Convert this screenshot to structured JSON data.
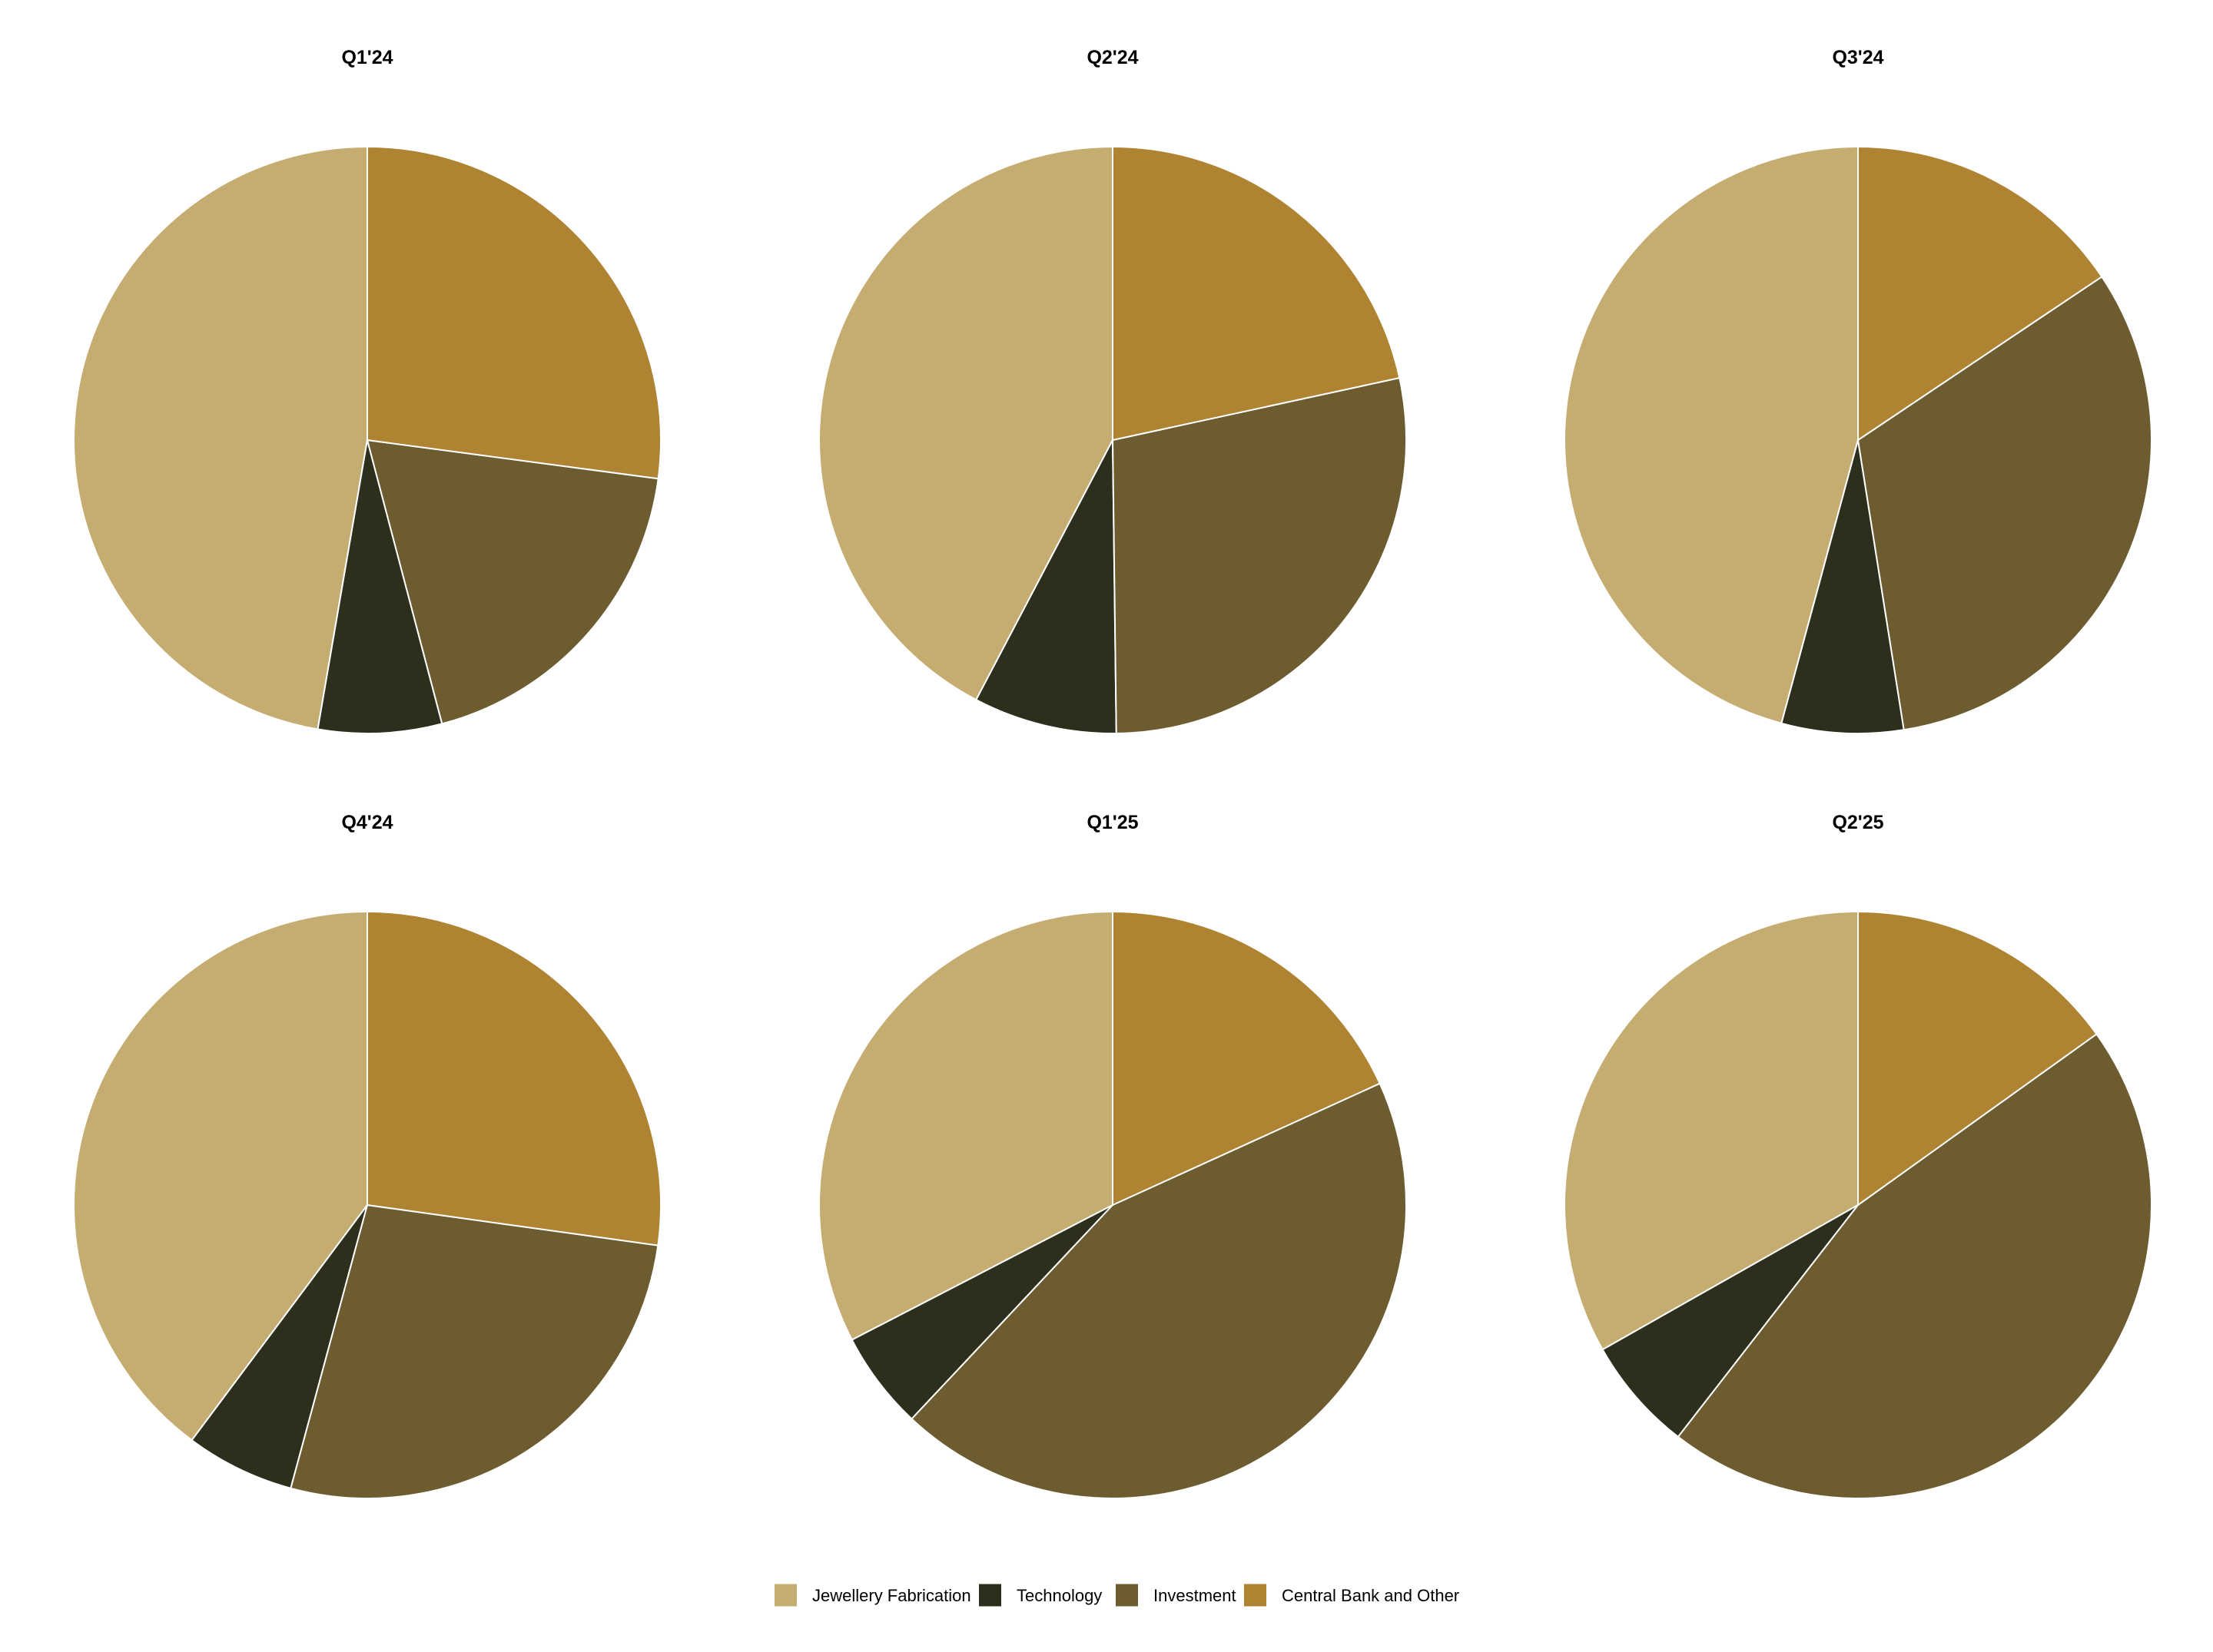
{
  "chart_data": [
    {
      "type": "pie",
      "title": "Q1'24",
      "categories": [
        "Jewellery Fabrication",
        "Technology",
        "Investment",
        "Central Bank and Other"
      ],
      "values": [
        47.3,
        6.8,
        18.8,
        27.1
      ]
    },
    {
      "type": "pie",
      "title": "Q2'24",
      "categories": [
        "Jewellery Fabrication",
        "Technology",
        "Investment",
        "Central Bank and Other"
      ],
      "values": [
        42.3,
        7.9,
        28.2,
        21.6
      ]
    },
    {
      "type": "pie",
      "title": "Q3'24",
      "categories": [
        "Jewellery Fabrication",
        "Technology",
        "Investment",
        "Central Bank and Other"
      ],
      "values": [
        45.8,
        6.7,
        31.9,
        15.6
      ]
    },
    {
      "type": "pie",
      "title": "Q4'24",
      "categories": [
        "Jewellery Fabrication",
        "Technology",
        "Investment",
        "Central Bank and Other"
      ],
      "values": [
        39.8,
        6.0,
        27.0,
        27.2
      ]
    },
    {
      "type": "pie",
      "title": "Q1'25",
      "categories": [
        "Jewellery Fabrication",
        "Technology",
        "Investment",
        "Central Bank and Other"
      ],
      "values": [
        32.6,
        5.4,
        43.8,
        18.2
      ]
    },
    {
      "type": "pie",
      "title": "Q2'25",
      "categories": [
        "Jewellery Fabrication",
        "Technology",
        "Investment",
        "Central Bank and Other"
      ],
      "values": [
        33.2,
        6.3,
        45.4,
        15.1
      ]
    }
  ],
  "legend": {
    "placement": "bottom",
    "items": [
      {
        "label": "Jewellery Fabrication",
        "color": "#c5ad72"
      },
      {
        "label": "Technology",
        "color": "#2d2f1c"
      },
      {
        "label": "Investment",
        "color": "#6d5c2f"
      },
      {
        "label": "Central Bank and Other",
        "color": "#ae8331"
      }
    ]
  },
  "colors": {
    "Jewellery Fabrication": "#c5ad72",
    "Technology": "#2d2f1c",
    "Investment": "#6d5c2f",
    "Central Bank and Other": "#ae8331",
    "slice_border": "#ffffff"
  }
}
